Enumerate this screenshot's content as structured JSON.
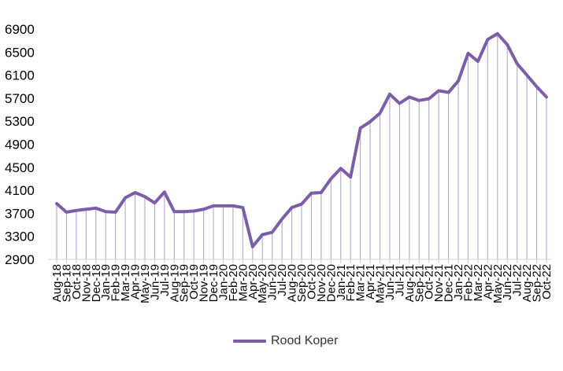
{
  "chart_data": {
    "type": "line",
    "title": "",
    "xlabel": "",
    "ylabel": "",
    "ylim": [
      2900,
      6900
    ],
    "yticks": [
      2900,
      3300,
      3700,
      4100,
      4500,
      4900,
      5300,
      5700,
      6100,
      6500,
      6900
    ],
    "grid": false,
    "legend_position": "bottom",
    "line_color": "#7b5ea7",
    "drop_line_color": "#b9aed0",
    "categories": [
      "Aug-18",
      "Sep-18",
      "Oct-18",
      "Nov-18",
      "Dec-18",
      "Jan-19",
      "Feb-19",
      "Mar-19",
      "Apr-19",
      "May-19",
      "Jun-19",
      "Jul-19",
      "Aug-19",
      "Sep-19",
      "Oct-19",
      "Nov-19",
      "Dec-19",
      "Jan-20",
      "Feb-20",
      "Mar-20",
      "Apr-20",
      "May-20",
      "Jun-20",
      "Jul-20",
      "Aug-20",
      "Sep-20",
      "Oct-20",
      "Nov-20",
      "Dec-20",
      "Jan-21",
      "Feb-21",
      "Mar-21",
      "Apr-21",
      "May-21",
      "Jun-21",
      "Jul-21",
      "Aug-21",
      "Sep-21",
      "Oct-21",
      "Nov-21",
      "Dec-21",
      "Jan-22",
      "Feb-22",
      "Mar-22",
      "Apr-22",
      "May-22",
      "Jun-22",
      "Jul-22",
      "Aug-22",
      "Sep-22",
      "Oct-22"
    ],
    "series": [
      {
        "name": "Rood Koper",
        "values": [
          3870,
          3720,
          3750,
          3770,
          3790,
          3730,
          3720,
          3970,
          4060,
          3990,
          3880,
          4070,
          3730,
          3730,
          3740,
          3770,
          3830,
          3830,
          3830,
          3800,
          3120,
          3330,
          3370,
          3600,
          3800,
          3860,
          4050,
          4060,
          4300,
          4480,
          4330,
          5180,
          5290,
          5440,
          5770,
          5610,
          5720,
          5660,
          5690,
          5830,
          5800,
          6000,
          6480,
          6340,
          6720,
          6820,
          6630,
          6300,
          6100,
          5900,
          5720
        ]
      }
    ]
  }
}
